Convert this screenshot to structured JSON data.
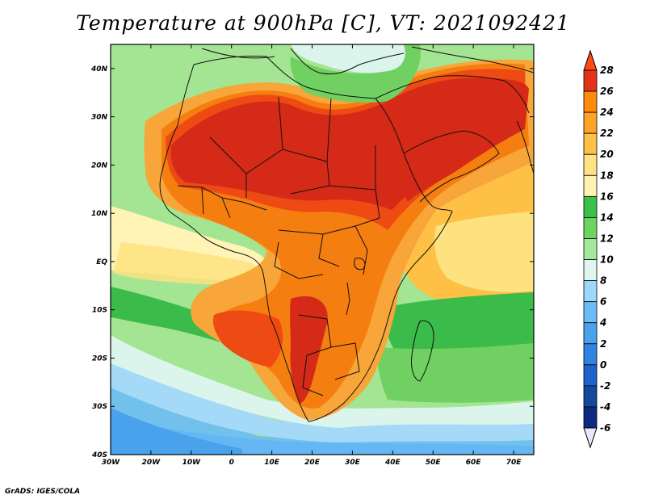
{
  "map": {
    "title": "Temperature at 900hPa [C], VT: 2021092421",
    "footer": "GrADS: IGES/COLA",
    "lon_ticks": [
      "30W",
      "20W",
      "10W",
      "0",
      "10E",
      "20E",
      "30E",
      "40E",
      "50E",
      "60E",
      "70E"
    ],
    "lat_ticks": [
      "40N",
      "30N",
      "20N",
      "10N",
      "EQ",
      "10S",
      "20S",
      "30S",
      "40S"
    ],
    "extent": {
      "lon_min": -30,
      "lon_max": 75,
      "lat_min": -40,
      "lat_max": 45
    },
    "colorbar": {
      "levels": [
        "28",
        "26",
        "24",
        "22",
        "20",
        "18",
        "16",
        "14",
        "12",
        "10",
        "8",
        "6",
        "4",
        "2",
        "0",
        "-2",
        "-4",
        "-6"
      ],
      "colors": [
        "#ff4a16",
        "#e33318",
        "#fe8b0c",
        "#fca32a",
        "#fec145",
        "#ffe383",
        "#fff2b3",
        "#3bc24a",
        "#6bd55d",
        "#a3e89b",
        "#dff6ef",
        "#9dd7fb",
        "#6bbdf6",
        "#4aa1ec",
        "#2e84e0",
        "#1f63cc",
        "#134a9f",
        "#0e2a7f"
      ]
    },
    "colors": {
      "hot": "#d42a17",
      "hot2": "#ee4a14",
      "orange": "#f57e10",
      "orange_light": "#f8a53a",
      "yellow_dark": "#f9c44f",
      "yellow": "#fee27f",
      "cream": "#fff3b6",
      "green_dark": "#3bbb4a",
      "green": "#70d061",
      "green_light": "#a3e592",
      "cyan_light": "#dbf5ed",
      "blue_light": "#a4d9f8",
      "blue": "#6bbdf6",
      "blue2": "#4aa1ec",
      "blue_dark": "#2e84e0"
    }
  }
}
